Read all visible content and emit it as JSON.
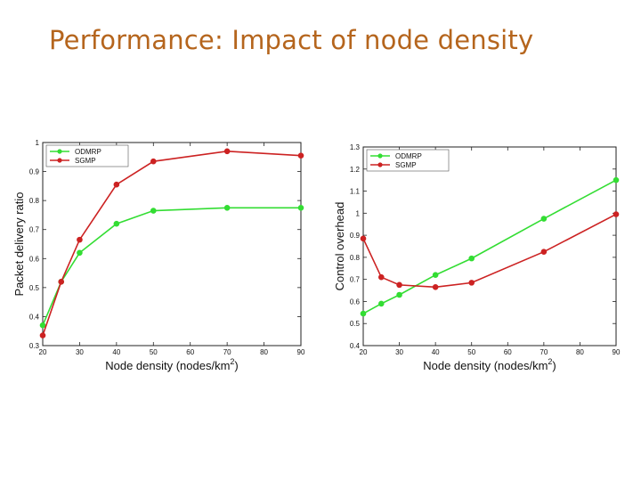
{
  "slide": {
    "title": "Performance: Impact of node density"
  },
  "chart_data": [
    {
      "type": "line",
      "title": "",
      "xlabel": "Node density (nodes/km",
      "xlabel_sup": "2",
      "xlabel_close": ")",
      "ylabel": "Packet delivery ratio",
      "xlim": [
        20,
        90
      ],
      "ylim": [
        0.3,
        1
      ],
      "x_ticks": [
        "20",
        "30",
        "40",
        "50",
        "60",
        "70",
        "80",
        "90"
      ],
      "y_ticks": [
        "0.3",
        "0.4",
        "0.5",
        "0.6",
        "0.7",
        "0.8",
        "0.9",
        "1"
      ],
      "grid": false,
      "legend_position": "top-left",
      "x": [
        20,
        25,
        30,
        40,
        50,
        70,
        90
      ],
      "series": [
        {
          "name": "ODMRP",
          "color": "#33dd33",
          "values": [
            0.37,
            0.52,
            0.62,
            0.72,
            0.765,
            0.775,
            0.775
          ]
        },
        {
          "name": "SGMP",
          "color": "#cc2222",
          "values": [
            0.335,
            0.52,
            0.665,
            0.855,
            0.935,
            0.97,
            0.955
          ]
        }
      ]
    },
    {
      "type": "line",
      "title": "",
      "xlabel": "Node density (nodes/km",
      "xlabel_sup": "2",
      "xlabel_close": ")",
      "ylabel": "Control overhead",
      "xlim": [
        20,
        90
      ],
      "ylim": [
        0.4,
        1.3
      ],
      "x_ticks": [
        "20",
        "30",
        "40",
        "50",
        "60",
        "70",
        "80",
        "90"
      ],
      "y_ticks": [
        "0.4",
        "0.5",
        "0.6",
        "0.7",
        "0.8",
        "0.9",
        "1",
        "1.1",
        "1.2",
        "1.3"
      ],
      "grid": false,
      "legend_position": "top-left",
      "x": [
        20,
        25,
        30,
        40,
        50,
        70,
        90
      ],
      "series": [
        {
          "name": "ODMRP",
          "color": "#33dd33",
          "values": [
            0.545,
            0.59,
            0.63,
            0.72,
            0.795,
            0.975,
            1.15
          ]
        },
        {
          "name": "SGMP",
          "color": "#cc2222",
          "values": [
            0.885,
            0.71,
            0.675,
            0.665,
            0.685,
            0.825,
            0.995
          ]
        }
      ]
    }
  ]
}
